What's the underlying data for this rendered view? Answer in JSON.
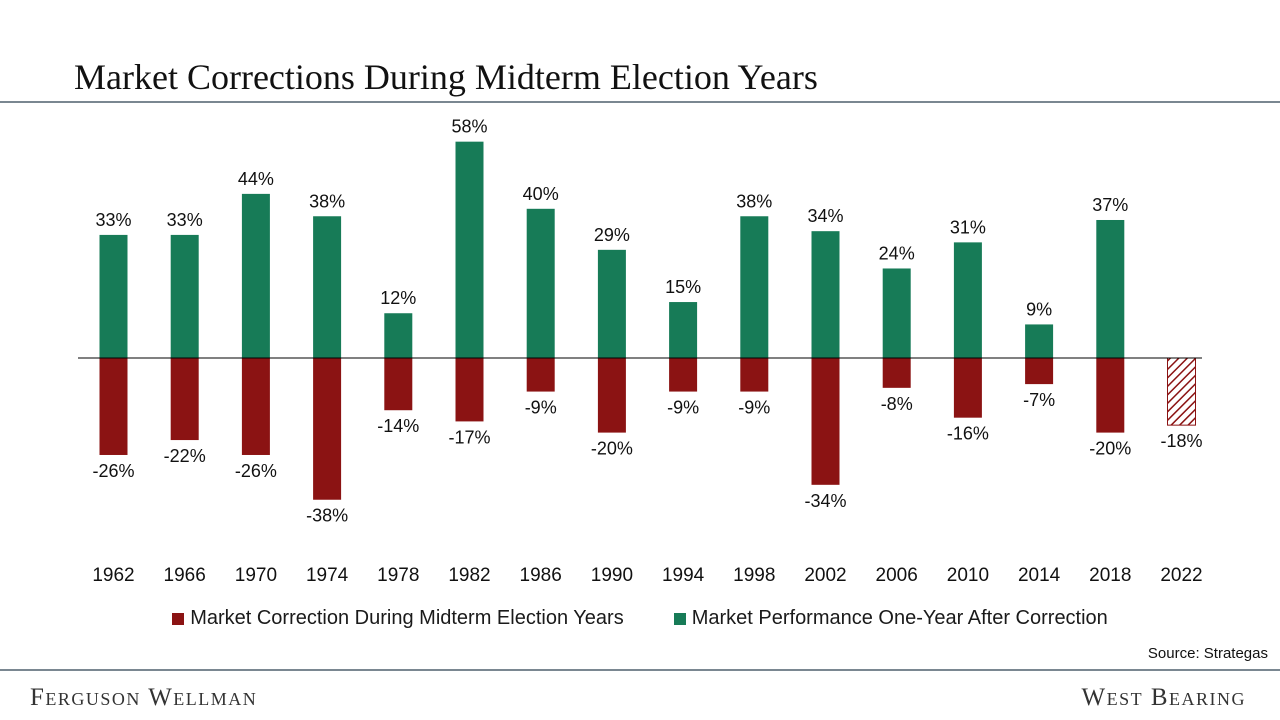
{
  "page": {
    "title": "Market Corrections During Midterm Election Years",
    "source": "Source: Strategas",
    "brand_left": "Ferguson Wellman",
    "brand_right": "West Bearing"
  },
  "colors": {
    "correction": "#8b1313",
    "performance": "#177b57",
    "zero_line": "#000000",
    "rule": "#7a8791"
  },
  "chart_data": {
    "type": "bar",
    "title": "Market Corrections During Midterm Election Years",
    "categories": [
      "1962",
      "1966",
      "1970",
      "1974",
      "1978",
      "1982",
      "1986",
      "1990",
      "1994",
      "1998",
      "2002",
      "2006",
      "2010",
      "2014",
      "2018",
      "2022"
    ],
    "series": [
      {
        "name": "Market Correction During Midterm Election Years",
        "color": "#8b1313",
        "values": [
          -26,
          -22,
          -26,
          -38,
          -14,
          -17,
          -9,
          -20,
          -9,
          -9,
          -34,
          -8,
          -16,
          -7,
          -20,
          -18
        ],
        "labels": [
          "-26%",
          "-22%",
          "-26%",
          "-38%",
          "-14%",
          "-17%",
          "-9%",
          "-20%",
          "-9%",
          "-9%",
          "-34%",
          "-8%",
          "-16%",
          "-7%",
          "-20%",
          "-18%"
        ],
        "hatched": [
          false,
          false,
          false,
          false,
          false,
          false,
          false,
          false,
          false,
          false,
          false,
          false,
          false,
          false,
          false,
          true
        ]
      },
      {
        "name": "Market Performance One-Year After Correction",
        "color": "#177b57",
        "values": [
          33,
          33,
          44,
          38,
          12,
          58,
          40,
          29,
          15,
          38,
          34,
          24,
          31,
          9,
          37,
          null
        ],
        "labels": [
          "33%",
          "33%",
          "44%",
          "38%",
          "12%",
          "58%",
          "40%",
          "29%",
          "15%",
          "38%",
          "34%",
          "24%",
          "31%",
          "9%",
          "37%",
          ""
        ]
      }
    ],
    "xlabel": "",
    "ylabel": "",
    "ylim": [
      -40,
      60
    ],
    "grid": false,
    "legend": "bottom"
  }
}
